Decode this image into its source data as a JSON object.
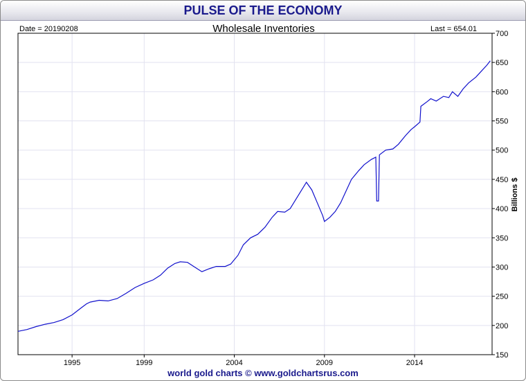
{
  "header": {
    "title": "PULSE OF THE ECONOMY"
  },
  "footer": {
    "credit": "world gold charts © www.goldchartsrus.com"
  },
  "chart_data": {
    "type": "line",
    "title": "Wholesale Inventories",
    "date_label": "Date = 20190208",
    "last_label": "Last = 654.01",
    "ylabel": "Billions $",
    "xlabel": "",
    "xlim": [
      1992.0,
      2018.3
    ],
    "ylim": [
      150,
      700
    ],
    "yticks": [
      150,
      200,
      250,
      300,
      350,
      400,
      450,
      500,
      550,
      600,
      650,
      700
    ],
    "xticks": [
      1995,
      1999,
      2004,
      2009,
      2014
    ],
    "grid": true,
    "series": [
      {
        "color": "#1010cc",
        "points": [
          [
            1992.0,
            190
          ],
          [
            1992.5,
            193
          ],
          [
            1993.0,
            198
          ],
          [
            1993.5,
            202
          ],
          [
            1994.0,
            205
          ],
          [
            1994.5,
            210
          ],
          [
            1995.0,
            218
          ],
          [
            1995.5,
            230
          ],
          [
            1995.8,
            237
          ],
          [
            1996.0,
            240
          ],
          [
            1996.5,
            243
          ],
          [
            1997.0,
            242
          ],
          [
            1997.5,
            246
          ],
          [
            1998.0,
            255
          ],
          [
            1998.5,
            265
          ],
          [
            1999.0,
            272
          ],
          [
            1999.5,
            278
          ],
          [
            1999.9,
            286
          ],
          [
            2000.3,
            298
          ],
          [
            2000.7,
            306
          ],
          [
            2001.0,
            309
          ],
          [
            2001.4,
            308
          ],
          [
            2001.8,
            300
          ],
          [
            2002.2,
            292
          ],
          [
            2002.6,
            297
          ],
          [
            2003.0,
            301
          ],
          [
            2003.5,
            301
          ],
          [
            2003.8,
            305
          ],
          [
            2004.2,
            320
          ],
          [
            2004.5,
            338
          ],
          [
            2004.9,
            350
          ],
          [
            2005.3,
            356
          ],
          [
            2005.7,
            368
          ],
          [
            2006.1,
            385
          ],
          [
            2006.4,
            395
          ],
          [
            2006.8,
            394
          ],
          [
            2007.1,
            400
          ],
          [
            2007.5,
            420
          ],
          [
            2007.9,
            440
          ],
          [
            2008.0,
            445
          ],
          [
            2008.3,
            432
          ],
          [
            2008.6,
            410
          ],
          [
            2008.9,
            388
          ],
          [
            2009.0,
            378
          ],
          [
            2009.3,
            385
          ],
          [
            2009.6,
            395
          ],
          [
            2009.9,
            410
          ],
          [
            2010.2,
            430
          ],
          [
            2010.5,
            450
          ],
          [
            2010.9,
            465
          ],
          [
            2011.2,
            475
          ],
          [
            2011.6,
            484
          ],
          [
            2011.85,
            488
          ],
          [
            2011.9,
            413
          ],
          [
            2012.0,
            413
          ],
          [
            2012.05,
            492
          ],
          [
            2012.4,
            500
          ],
          [
            2012.8,
            502
          ],
          [
            2013.1,
            510
          ],
          [
            2013.5,
            525
          ],
          [
            2013.8,
            535
          ],
          [
            2014.0,
            540
          ],
          [
            2014.3,
            548
          ],
          [
            2014.35,
            575
          ],
          [
            2014.7,
            583
          ],
          [
            2014.9,
            588
          ],
          [
            2015.2,
            584
          ],
          [
            2015.6,
            592
          ],
          [
            2015.9,
            590
          ],
          [
            2016.1,
            600
          ],
          [
            2016.4,
            592
          ],
          [
            2016.7,
            605
          ],
          [
            2017.0,
            615
          ],
          [
            2017.4,
            625
          ],
          [
            2017.7,
            635
          ],
          [
            2018.0,
            645
          ],
          [
            2018.2,
            653
          ]
        ]
      }
    ]
  }
}
